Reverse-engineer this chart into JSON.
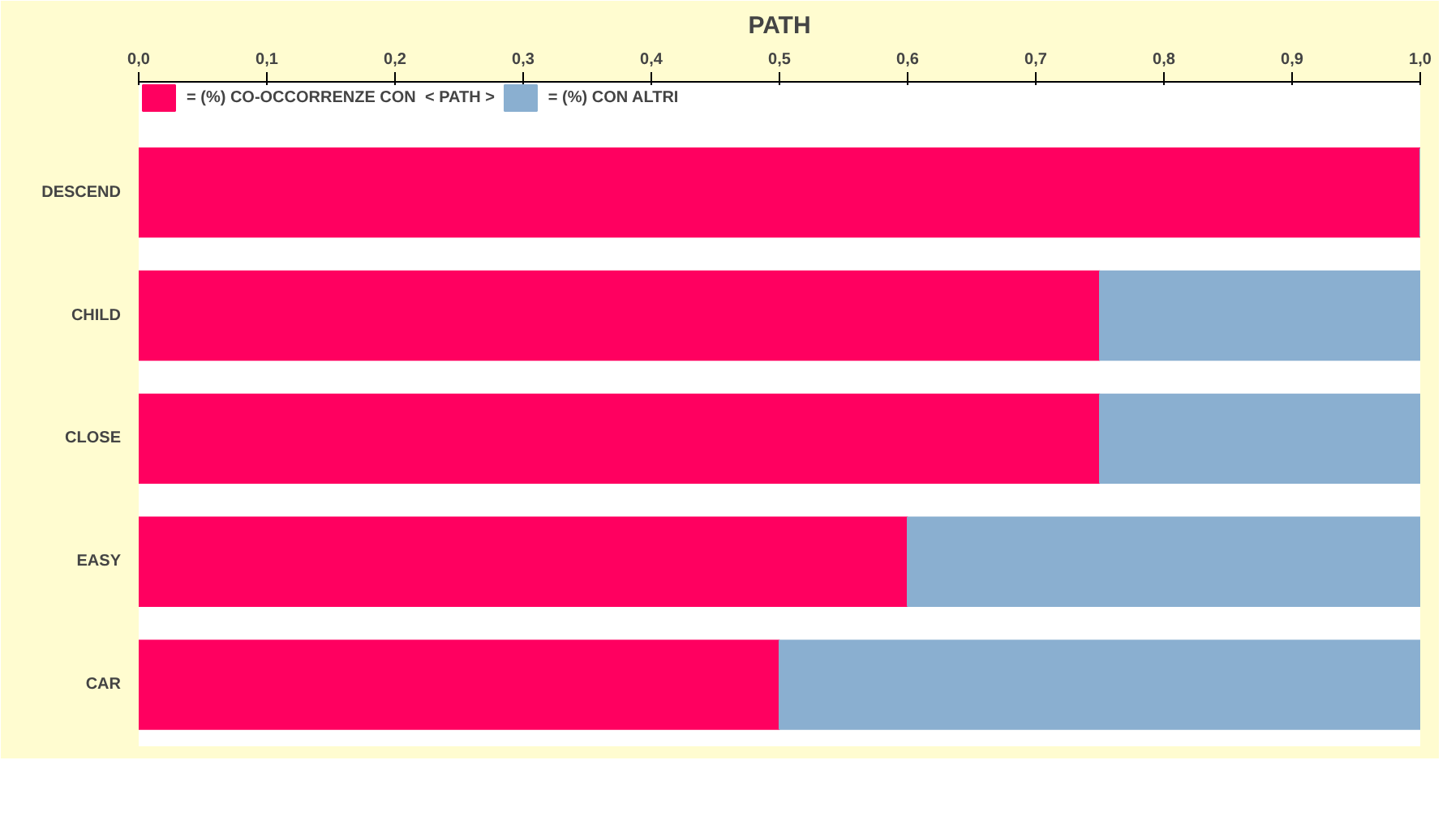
{
  "chart_data": {
    "type": "bar",
    "orientation": "horizontal",
    "stacked": true,
    "title": "PATH",
    "categories": [
      "DESCEND",
      "CHILD",
      "CLOSE",
      "EASY",
      "CAR"
    ],
    "series": [
      {
        "name": "= (%) CO-OCCORRENZE CON  < PATH >",
        "color": "#ff0060",
        "values": [
          1.0,
          0.75,
          0.75,
          0.6,
          0.5
        ]
      },
      {
        "name": "= (%) CON ALTRI",
        "color": "#8aafd0",
        "values": [
          0.0,
          0.25,
          0.25,
          0.4,
          0.5
        ]
      }
    ],
    "xlim": [
      0,
      1
    ],
    "xticks": [
      {
        "value": 0,
        "label": "0,0"
      },
      {
        "value": 0.1,
        "label": "0,1"
      },
      {
        "value": 0.2,
        "label": "0,2"
      },
      {
        "value": 0.3,
        "label": "0,3"
      },
      {
        "value": 0.4,
        "label": "0,4"
      },
      {
        "value": 0.5,
        "label": "0,5"
      },
      {
        "value": 0.6,
        "label": "0,6"
      },
      {
        "value": 0.7,
        "label": "0,7"
      },
      {
        "value": 0.8,
        "label": "0,8"
      },
      {
        "value": 0.9,
        "label": "0,9"
      },
      {
        "value": 1,
        "label": "1,0"
      }
    ],
    "legend": "top left",
    "grid": false
  }
}
